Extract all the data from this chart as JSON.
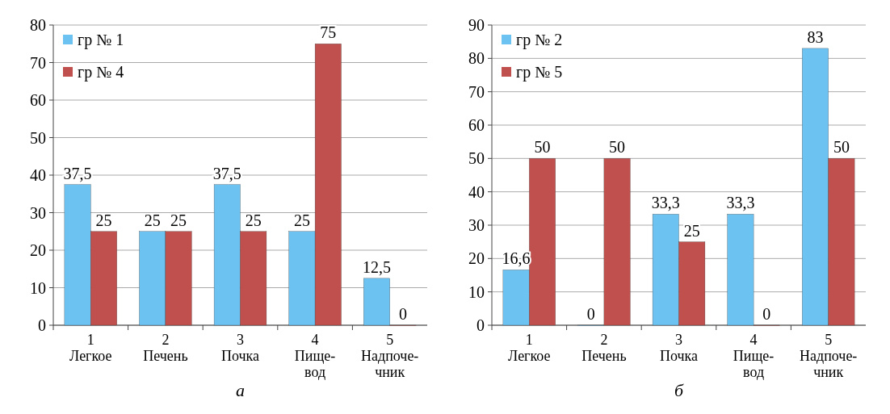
{
  "chart_data": [
    {
      "type": "bar",
      "categories": [
        "1\nЛегкое",
        "2\nПечень",
        "3\nПочка",
        "4\nПище-\nвод",
        "5\nНадпоче-\nчник"
      ],
      "series": [
        {
          "name": "гр № 1",
          "color": "#6cc3f2",
          "values": [
            37.5,
            25,
            37.5,
            25,
            12.5
          ],
          "value_labels": [
            "37,5",
            "25",
            "37,5",
            "25",
            "12,5"
          ]
        },
        {
          "name": "гр № 4",
          "color": "#c0504d",
          "values": [
            25,
            25,
            25,
            75,
            0
          ],
          "value_labels": [
            "25",
            "25",
            "25",
            "75",
            "0"
          ]
        }
      ],
      "ylim": [
        0,
        80
      ],
      "yticks": [
        0,
        10,
        20,
        30,
        40,
        50,
        60,
        70,
        80
      ],
      "grid": "y",
      "legend": "top left",
      "annotations": [
        "а"
      ]
    },
    {
      "type": "bar",
      "categories": [
        "1\nЛегкое",
        "2\nПечень",
        "3\nПочка",
        "4\nПище-\nвод",
        "5\nНадпоче-\nчник"
      ],
      "series": [
        {
          "name": "гр № 2",
          "color": "#6cc3f2",
          "values": [
            16.6,
            0,
            33.3,
            33.3,
            83
          ],
          "value_labels": [
            "16,6",
            "0",
            "33,3",
            "33,3",
            "83"
          ]
        },
        {
          "name": "гр № 5",
          "color": "#c0504d",
          "values": [
            50,
            50,
            25,
            0,
            50
          ],
          "value_labels": [
            "50",
            "50",
            "25",
            "0",
            "50"
          ]
        }
      ],
      "ylim": [
        0,
        90
      ],
      "yticks": [
        0,
        10,
        20,
        30,
        40,
        50,
        60,
        70,
        80,
        90
      ],
      "grid": "y",
      "legend": "top left",
      "annotations": [
        "б"
      ]
    }
  ]
}
